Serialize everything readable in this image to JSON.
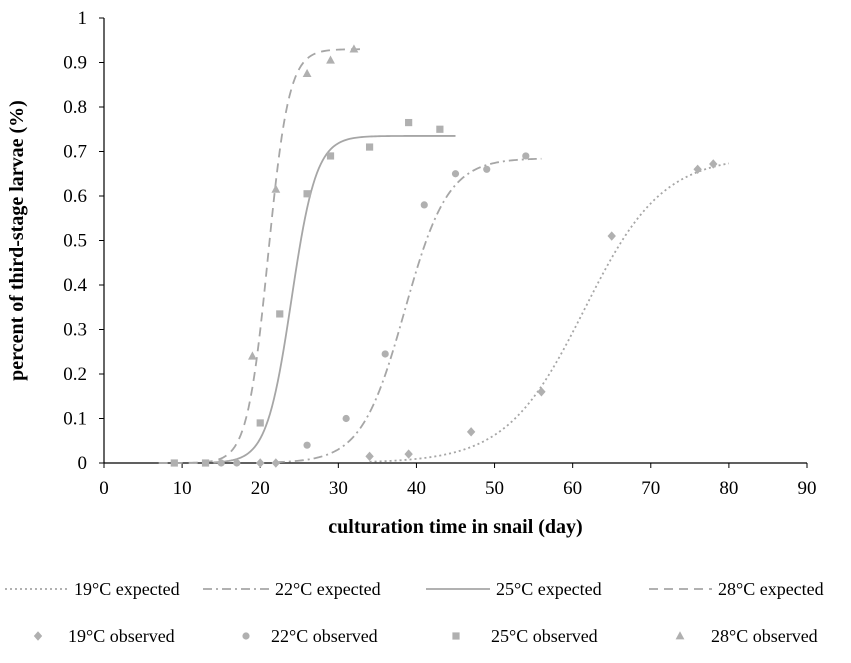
{
  "chart_data": {
    "type": "scatter",
    "xlabel": "culturation time in snail (day)",
    "ylabel": "percent of third-stage larvae (%)",
    "xlim": [
      0,
      90
    ],
    "ylim": [
      0,
      1
    ],
    "xticks": [
      0,
      10,
      20,
      30,
      40,
      50,
      60,
      70,
      80,
      90
    ],
    "yticks": [
      0,
      0.1,
      0.2,
      0.3,
      0.4,
      0.5,
      0.6,
      0.7,
      0.8,
      0.9,
      1
    ],
    "ytick_labels": [
      "0",
      "0.1",
      "0.2",
      "0.3",
      "0.4",
      "0.5",
      "0.6",
      "0.7",
      "0.8",
      "0.9",
      "1"
    ],
    "grid": false,
    "legend_position": "bottom",
    "curves": [
      {
        "name": "19°C expected",
        "style": "dotted",
        "color": "#a6a6a6",
        "asymptote": 0.69,
        "midpoint": 61.5,
        "rate": 0.2,
        "xrange": [
          34,
          80
        ]
      },
      {
        "name": "22°C expected",
        "style": "dash-dot",
        "color": "#a6a6a6",
        "asymptote": 0.685,
        "midpoint": 38.5,
        "rate": 0.36,
        "xrange": [
          22,
          56
        ]
      },
      {
        "name": "25°C expected",
        "style": "solid",
        "color": "#a6a6a6",
        "asymptote": 0.735,
        "midpoint": 24.0,
        "rate": 0.63,
        "xrange": [
          14,
          45
        ]
      },
      {
        "name": "28°C expected",
        "style": "dashed",
        "color": "#a6a6a6",
        "asymptote": 0.93,
        "midpoint": 21.0,
        "rate": 0.75,
        "xrange": [
          7,
          33
        ]
      }
    ],
    "series": [
      {
        "name": "19°C observed",
        "marker": "diamond",
        "color": "#b0b0b0",
        "points": [
          [
            20,
            0
          ],
          [
            22,
            0
          ],
          [
            34,
            0.015
          ],
          [
            39,
            0.02
          ],
          [
            47,
            0.07
          ],
          [
            56,
            0.16
          ],
          [
            65,
            0.51
          ],
          [
            76,
            0.66
          ],
          [
            78,
            0.672
          ]
        ]
      },
      {
        "name": "22°C observed",
        "marker": "circle",
        "color": "#b0b0b0",
        "points": [
          [
            15,
            0
          ],
          [
            17,
            0
          ],
          [
            26,
            0.04
          ],
          [
            31,
            0.1
          ],
          [
            36,
            0.245
          ],
          [
            41,
            0.58
          ],
          [
            45,
            0.65
          ],
          [
            49,
            0.66
          ],
          [
            54,
            0.69
          ]
        ]
      },
      {
        "name": "25°C observed",
        "marker": "square",
        "color": "#b0b0b0",
        "points": [
          [
            9,
            0
          ],
          [
            13,
            0
          ],
          [
            20,
            0.09
          ],
          [
            22.5,
            0.335
          ],
          [
            26,
            0.605
          ],
          [
            29,
            0.69
          ],
          [
            34,
            0.71
          ],
          [
            39,
            0.765
          ],
          [
            43,
            0.75
          ]
        ]
      },
      {
        "name": "28°C observed",
        "marker": "triangle",
        "color": "#b0b0b0",
        "points": [
          [
            19,
            0.24
          ],
          [
            22,
            0.615
          ],
          [
            26,
            0.875
          ],
          [
            29,
            0.905
          ],
          [
            32,
            0.93
          ]
        ]
      }
    ]
  }
}
